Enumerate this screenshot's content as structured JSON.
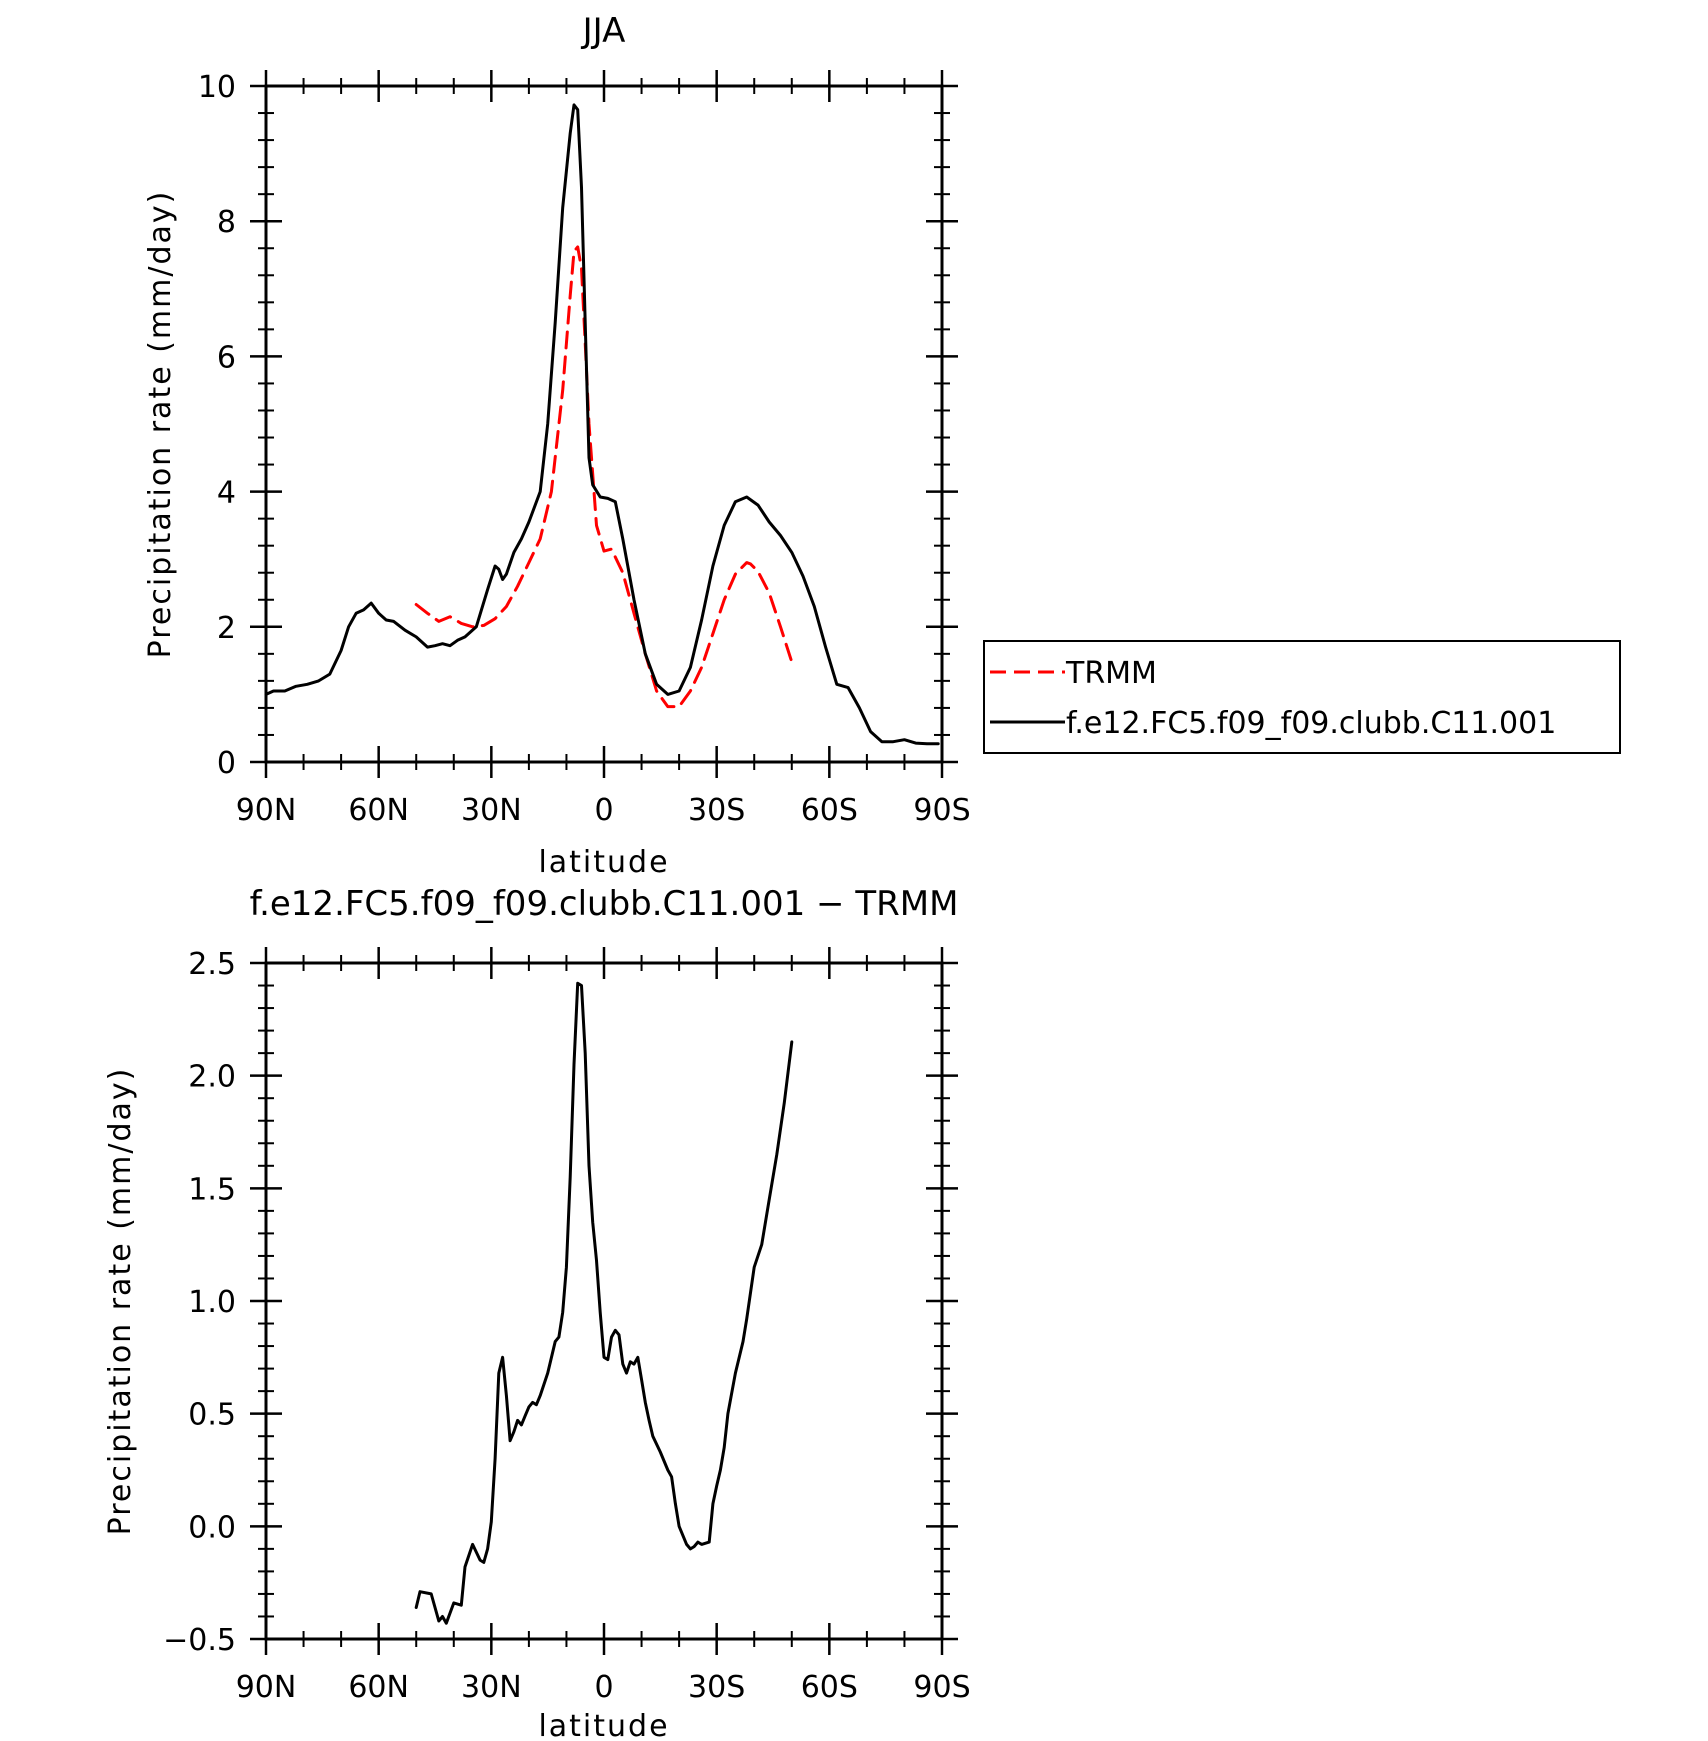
{
  "chart_data": [
    {
      "type": "line",
      "title": "JJA",
      "xlabel": "latitude",
      "ylabel": "Precipitation rate (mm/day)",
      "xlim": [
        90,
        -90
      ],
      "ylim": [
        0,
        10
      ],
      "xticks": [
        90,
        60,
        30,
        0,
        -30,
        -60,
        -90
      ],
      "xtick_labels": [
        "90N",
        "60N",
        "30N",
        "0",
        "30S",
        "60S",
        "90S"
      ],
      "yticks": [
        0,
        2,
        4,
        6,
        8,
        10
      ],
      "ytick_labels": [
        "0",
        "2",
        "4",
        "6",
        "8",
        "10"
      ],
      "grid": false,
      "legend_position": "outside-right",
      "series": [
        {
          "name": "TRMM",
          "color": "#ff0000",
          "style": "dashed",
          "x": [
            50,
            47,
            44,
            41,
            38,
            35,
            32,
            29,
            26,
            23,
            20,
            17,
            14,
            11,
            9,
            8,
            7,
            6,
            5,
            4,
            2,
            0,
            -2,
            -5,
            -8,
            -11,
            -14,
            -17,
            -20,
            -23,
            -26,
            -29,
            -32,
            -35,
            -38,
            -39,
            -41,
            -44,
            -47,
            -50
          ],
          "y": [
            2.33,
            2.2,
            2.08,
            2.15,
            2.05,
            2.0,
            2.02,
            2.12,
            2.3,
            2.6,
            2.95,
            3.3,
            4.0,
            5.5,
            6.9,
            7.55,
            7.62,
            7.3,
            6.2,
            5.0,
            3.5,
            3.12,
            3.15,
            2.8,
            2.2,
            1.6,
            1.05,
            0.82,
            0.82,
            1.05,
            1.4,
            1.9,
            2.4,
            2.78,
            2.95,
            2.93,
            2.82,
            2.5,
            2.0,
            1.48
          ]
        },
        {
          "name": "f.e12.FC5.f09_f09.clubb.C11.001",
          "color": "#000000",
          "style": "solid",
          "x": [
            90,
            88,
            85,
            82,
            79,
            76,
            73,
            70,
            68,
            66,
            64,
            62,
            60,
            58,
            56,
            53,
            50,
            47,
            45,
            43,
            41,
            39,
            37,
            34,
            31,
            29,
            28,
            27,
            26,
            24,
            22,
            20,
            17,
            15,
            13,
            11,
            9,
            8,
            7,
            6,
            5,
            4,
            3,
            1,
            -1,
            -3,
            -5,
            -8,
            -11,
            -14,
            -17,
            -20,
            -23,
            -26,
            -29,
            -32,
            -35,
            -38,
            -41,
            -44,
            -47,
            -50,
            -53,
            -56,
            -59,
            -62,
            -65,
            -68,
            -71,
            -74,
            -77,
            -80,
            -83,
            -86,
            -89
          ],
          "y": [
            1.0,
            1.05,
            1.05,
            1.12,
            1.15,
            1.2,
            1.3,
            1.65,
            2.0,
            2.2,
            2.25,
            2.35,
            2.2,
            2.1,
            2.08,
            1.95,
            1.85,
            1.7,
            1.72,
            1.75,
            1.72,
            1.8,
            1.85,
            2.0,
            2.55,
            2.9,
            2.85,
            2.7,
            2.78,
            3.1,
            3.3,
            3.55,
            4.0,
            5.0,
            6.5,
            8.2,
            9.3,
            9.72,
            9.65,
            8.5,
            6.5,
            4.5,
            4.1,
            3.92,
            3.9,
            3.85,
            3.3,
            2.4,
            1.6,
            1.15,
            1.0,
            1.05,
            1.4,
            2.1,
            2.9,
            3.5,
            3.85,
            3.92,
            3.8,
            3.55,
            3.35,
            3.1,
            2.75,
            2.3,
            1.7,
            1.15,
            1.1,
            0.8,
            0.45,
            0.3,
            0.3,
            0.33,
            0.28,
            0.27,
            0.27
          ]
        }
      ]
    },
    {
      "type": "line",
      "title": "f.e12.FC5.f09_f09.clubb.C11.001 − TRMM",
      "xlabel": "latitude",
      "ylabel": "Precipitation rate (mm/day)",
      "xlim": [
        90,
        -90
      ],
      "ylim": [
        -0.5,
        2.5
      ],
      "xticks": [
        90,
        60,
        30,
        0,
        -30,
        -60,
        -90
      ],
      "xtick_labels": [
        "90N",
        "60N",
        "30N",
        "0",
        "30S",
        "60S",
        "90S"
      ],
      "yticks": [
        -0.5,
        0,
        0.5,
        1.0,
        1.5,
        2.0,
        2.5
      ],
      "ytick_labels": [
        "−0.5",
        "0.0",
        "0.5",
        "1.0",
        "1.5",
        "2.0",
        "2.5"
      ],
      "grid": false,
      "series": [
        {
          "color": "#000000",
          "style": "solid",
          "x": [
            50,
            49,
            46,
            44,
            43,
            42,
            40,
            38,
            37,
            35,
            33,
            32,
            31,
            30,
            29,
            28,
            27,
            26,
            25,
            24,
            23,
            22,
            21,
            20,
            19,
            18,
            17,
            15,
            13,
            12,
            11,
            10,
            9,
            8,
            7,
            6,
            5,
            4,
            3,
            2,
            1,
            0,
            -1,
            -2,
            -3,
            -4,
            -5,
            -6,
            -7,
            -8,
            -9,
            -10,
            -11,
            -12,
            -13,
            -15,
            -17,
            -18,
            -19,
            -20,
            -22,
            -23,
            -24,
            -25,
            -26,
            -28,
            -29,
            -30,
            -31,
            -32,
            -33,
            -35,
            -37,
            -38,
            -40,
            -42,
            -44,
            -46,
            -48,
            -50
          ],
          "y": [
            -0.36,
            -0.29,
            -0.3,
            -0.42,
            -0.4,
            -0.43,
            -0.34,
            -0.35,
            -0.18,
            -0.08,
            -0.15,
            -0.16,
            -0.1,
            0.02,
            0.3,
            0.68,
            0.75,
            0.58,
            0.38,
            0.42,
            0.47,
            0.45,
            0.49,
            0.53,
            0.55,
            0.54,
            0.58,
            0.68,
            0.82,
            0.84,
            0.95,
            1.15,
            1.55,
            2.05,
            2.41,
            2.4,
            2.1,
            1.6,
            1.35,
            1.18,
            0.95,
            0.75,
            0.74,
            0.84,
            0.87,
            0.85,
            0.72,
            0.68,
            0.73,
            0.72,
            0.75,
            0.65,
            0.55,
            0.47,
            0.4,
            0.33,
            0.25,
            0.22,
            0.1,
            0.0,
            -0.08,
            -0.1,
            -0.09,
            -0.07,
            -0.08,
            -0.07,
            0.1,
            0.18,
            0.25,
            0.35,
            0.5,
            0.68,
            0.82,
            0.92,
            1.15,
            1.25,
            1.45,
            1.65,
            1.88,
            2.15
          ]
        }
      ]
    }
  ],
  "legend": {
    "items": [
      {
        "label": "TRMM",
        "color": "#ff0000",
        "style": "dashed"
      },
      {
        "label": "f.e12.FC5.f09_f09.clubb.C11.001",
        "color": "#000000",
        "style": "solid"
      }
    ]
  }
}
